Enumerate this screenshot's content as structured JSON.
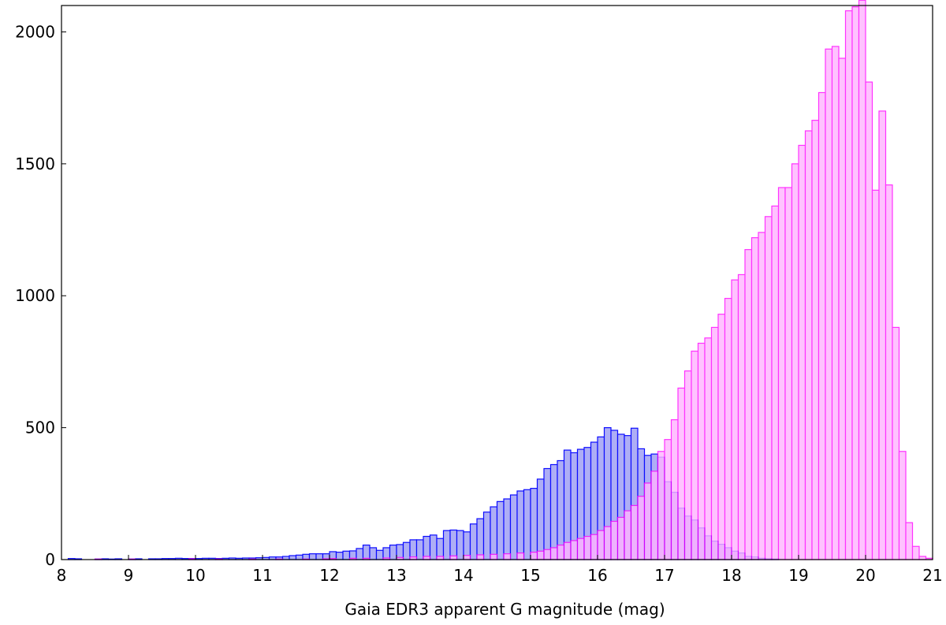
{
  "chart_data": {
    "type": "bar",
    "title": "",
    "xlabel": "Gaia EDR3 apparent G magnitude (mag)",
    "ylabel": "",
    "xlim": [
      8,
      21
    ],
    "ylim": [
      0,
      2100
    ],
    "grid": false,
    "legend": "none",
    "bin_width": 0.1,
    "x_ticks": [
      8,
      9,
      10,
      11,
      12,
      13,
      14,
      15,
      16,
      17,
      18,
      19,
      20,
      21
    ],
    "y_ticks": [
      0,
      500,
      1000,
      1500,
      2000
    ],
    "series": [
      {
        "color": "#0000ff",
        "fill": "#aaaaf5",
        "bins": [
          [
            8.1,
            4
          ],
          [
            8.2,
            3
          ],
          [
            8.5,
            2
          ],
          [
            8.6,
            3
          ],
          [
            8.7,
            2
          ],
          [
            8.8,
            3
          ],
          [
            9.0,
            2
          ],
          [
            9.1,
            3
          ],
          [
            9.3,
            3
          ],
          [
            9.4,
            3
          ],
          [
            9.5,
            4
          ],
          [
            9.6,
            4
          ],
          [
            9.7,
            5
          ],
          [
            9.8,
            4
          ],
          [
            9.9,
            4
          ],
          [
            10.0,
            4
          ],
          [
            10.1,
            5
          ],
          [
            10.2,
            5
          ],
          [
            10.3,
            4
          ],
          [
            10.4,
            5
          ],
          [
            10.5,
            6
          ],
          [
            10.6,
            5
          ],
          [
            10.7,
            6
          ],
          [
            10.8,
            6
          ],
          [
            10.9,
            7
          ],
          [
            11.0,
            8
          ],
          [
            11.1,
            10
          ],
          [
            11.2,
            10
          ],
          [
            11.3,
            12
          ],
          [
            11.4,
            15
          ],
          [
            11.5,
            17
          ],
          [
            11.6,
            20
          ],
          [
            11.7,
            22
          ],
          [
            11.8,
            22
          ],
          [
            11.9,
            22
          ],
          [
            12.0,
            30
          ],
          [
            12.1,
            28
          ],
          [
            12.2,
            32
          ],
          [
            12.3,
            33
          ],
          [
            12.4,
            42
          ],
          [
            12.5,
            55
          ],
          [
            12.6,
            45
          ],
          [
            12.7,
            35
          ],
          [
            12.8,
            45
          ],
          [
            12.9,
            55
          ],
          [
            13.0,
            57
          ],
          [
            13.1,
            65
          ],
          [
            13.2,
            75
          ],
          [
            13.3,
            75
          ],
          [
            13.4,
            88
          ],
          [
            13.5,
            93
          ],
          [
            13.6,
            80
          ],
          [
            13.7,
            110
          ],
          [
            13.8,
            112
          ],
          [
            13.9,
            110
          ],
          [
            14.0,
            105
          ],
          [
            14.1,
            135
          ],
          [
            14.2,
            155
          ],
          [
            14.3,
            180
          ],
          [
            14.4,
            200
          ],
          [
            14.5,
            220
          ],
          [
            14.6,
            230
          ],
          [
            14.7,
            245
          ],
          [
            14.8,
            260
          ],
          [
            14.9,
            265
          ],
          [
            15.0,
            270
          ],
          [
            15.1,
            305
          ],
          [
            15.2,
            345
          ],
          [
            15.3,
            360
          ],
          [
            15.4,
            375
          ],
          [
            15.5,
            415
          ],
          [
            15.6,
            405
          ],
          [
            15.7,
            418
          ],
          [
            15.8,
            425
          ],
          [
            15.9,
            445
          ],
          [
            16.0,
            465
          ],
          [
            16.1,
            500
          ],
          [
            16.2,
            490
          ],
          [
            16.3,
            475
          ],
          [
            16.4,
            470
          ],
          [
            16.5,
            498
          ],
          [
            16.6,
            420
          ],
          [
            16.7,
            395
          ],
          [
            16.8,
            400
          ],
          [
            16.9,
            388
          ],
          [
            17.0,
            295
          ],
          [
            17.1,
            255
          ],
          [
            17.2,
            195
          ],
          [
            17.3,
            165
          ],
          [
            17.4,
            150
          ],
          [
            17.5,
            120
          ],
          [
            17.6,
            90
          ],
          [
            17.7,
            70
          ],
          [
            17.8,
            58
          ],
          [
            17.9,
            45
          ],
          [
            18.0,
            32
          ],
          [
            18.1,
            25
          ],
          [
            18.2,
            12
          ],
          [
            18.3,
            10
          ],
          [
            18.4,
            5
          ],
          [
            18.5,
            3
          ],
          [
            18.6,
            2
          ]
        ]
      },
      {
        "color": "#ff00ff",
        "fill": "#ffb4ff",
        "bins": [
          [
            8.5,
            2
          ],
          [
            9.0,
            2
          ],
          [
            9.9,
            3
          ],
          [
            10.3,
            2
          ],
          [
            10.8,
            2
          ],
          [
            11.2,
            2
          ],
          [
            11.6,
            2
          ],
          [
            11.9,
            3
          ],
          [
            12.0,
            4
          ],
          [
            12.3,
            5
          ],
          [
            12.5,
            5
          ],
          [
            12.8,
            6
          ],
          [
            13.0,
            8
          ],
          [
            13.2,
            10
          ],
          [
            13.4,
            12
          ],
          [
            13.6,
            12
          ],
          [
            13.8,
            14
          ],
          [
            14.0,
            16
          ],
          [
            14.2,
            18
          ],
          [
            14.4,
            20
          ],
          [
            14.6,
            22
          ],
          [
            14.8,
            25
          ],
          [
            15.0,
            28
          ],
          [
            15.1,
            32
          ],
          [
            15.2,
            38
          ],
          [
            15.3,
            45
          ],
          [
            15.4,
            55
          ],
          [
            15.5,
            65
          ],
          [
            15.6,
            72
          ],
          [
            15.7,
            80
          ],
          [
            15.8,
            88
          ],
          [
            15.9,
            95
          ],
          [
            16.0,
            110
          ],
          [
            16.1,
            125
          ],
          [
            16.2,
            145
          ],
          [
            16.3,
            160
          ],
          [
            16.4,
            185
          ],
          [
            16.5,
            205
          ],
          [
            16.6,
            240
          ],
          [
            16.7,
            290
          ],
          [
            16.8,
            335
          ],
          [
            16.9,
            410
          ],
          [
            17.0,
            455
          ],
          [
            17.1,
            530
          ],
          [
            17.2,
            650
          ],
          [
            17.3,
            715
          ],
          [
            17.4,
            790
          ],
          [
            17.5,
            820
          ],
          [
            17.6,
            840
          ],
          [
            17.7,
            880
          ],
          [
            17.8,
            930
          ],
          [
            17.9,
            990
          ],
          [
            18.0,
            1060
          ],
          [
            18.1,
            1080
          ],
          [
            18.2,
            1175
          ],
          [
            18.3,
            1220
          ],
          [
            18.4,
            1240
          ],
          [
            18.5,
            1300
          ],
          [
            18.6,
            1340
          ],
          [
            18.7,
            1410
          ],
          [
            18.8,
            1410
          ],
          [
            18.9,
            1500
          ],
          [
            19.0,
            1570
          ],
          [
            19.1,
            1625
          ],
          [
            19.2,
            1665
          ],
          [
            19.3,
            1770
          ],
          [
            19.4,
            1935
          ],
          [
            19.5,
            1945
          ],
          [
            19.6,
            1900
          ],
          [
            19.7,
            2080
          ],
          [
            19.8,
            2095
          ],
          [
            19.9,
            2120
          ],
          [
            20.0,
            1810
          ],
          [
            20.1,
            1400
          ],
          [
            20.2,
            1700
          ],
          [
            20.3,
            1420
          ],
          [
            20.4,
            880
          ],
          [
            20.5,
            410
          ],
          [
            20.6,
            140
          ],
          [
            20.7,
            50
          ],
          [
            20.8,
            12
          ],
          [
            20.9,
            5
          ]
        ]
      }
    ]
  }
}
